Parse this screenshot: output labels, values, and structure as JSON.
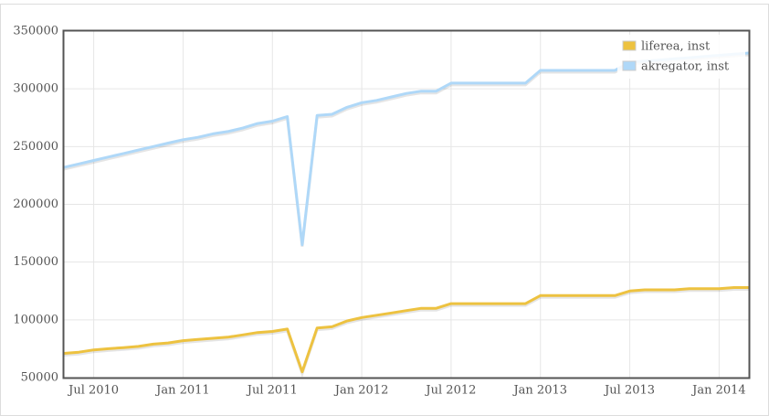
{
  "chart_data": {
    "type": "line",
    "x": [
      "2010-05",
      "2010-06",
      "2010-07",
      "2010-08",
      "2010-09",
      "2010-10",
      "2010-11",
      "2010-12",
      "2011-01",
      "2011-02",
      "2011-03",
      "2011-04",
      "2011-05",
      "2011-06",
      "2011-07",
      "2011-08",
      "2011-09",
      "2011-10",
      "2011-11",
      "2011-12",
      "2012-01",
      "2012-02",
      "2012-03",
      "2012-04",
      "2012-05",
      "2012-06",
      "2012-07",
      "2012-08",
      "2012-09",
      "2012-10",
      "2012-11",
      "2012-12",
      "2013-01",
      "2013-02",
      "2013-03",
      "2013-04",
      "2013-05",
      "2013-06",
      "2013-07",
      "2013-08",
      "2013-09",
      "2013-10",
      "2013-11",
      "2013-12",
      "2014-01",
      "2014-02",
      "2014-03"
    ],
    "series": [
      {
        "name": "liferea, inst",
        "color": "#edc240",
        "values": [
          71000,
          72000,
          74000,
          75000,
          76000,
          77000,
          79000,
          80000,
          82000,
          83000,
          84000,
          85000,
          87000,
          89000,
          90000,
          92000,
          55000,
          93000,
          94000,
          99000,
          102000,
          104000,
          106000,
          108000,
          110000,
          110000,
          114000,
          114000,
          114000,
          114000,
          114000,
          114000,
          121000,
          121000,
          121000,
          121000,
          121000,
          121000,
          125000,
          126000,
          126000,
          126000,
          127000,
          127000,
          127000,
          128000,
          128000
        ]
      },
      {
        "name": "akregator, inst",
        "color": "#afd8f8",
        "values": [
          232000,
          235000,
          238000,
          241000,
          244000,
          247000,
          250000,
          253000,
          256000,
          258000,
          261000,
          263000,
          266000,
          270000,
          272000,
          276000,
          165000,
          277000,
          278000,
          284000,
          288000,
          290000,
          293000,
          296000,
          298000,
          298000,
          305000,
          305000,
          305000,
          305000,
          305000,
          305000,
          316000,
          316000,
          316000,
          316000,
          316000,
          316000,
          323000,
          324000,
          325000,
          326000,
          327000,
          328000,
          329000,
          330000,
          331000
        ]
      }
    ],
    "xlim": [
      "2010-05",
      "2014-03"
    ],
    "xticks": [
      {
        "value": "2010-07",
        "label": "Jul 2010"
      },
      {
        "value": "2011-01",
        "label": "Jan 2011"
      },
      {
        "value": "2011-07",
        "label": "Jul 2011"
      },
      {
        "value": "2012-01",
        "label": "Jan 2012"
      },
      {
        "value": "2012-07",
        "label": "Jul 2012"
      },
      {
        "value": "2013-01",
        "label": "Jan 2013"
      },
      {
        "value": "2013-07",
        "label": "Jul 2013"
      },
      {
        "value": "2014-01",
        "label": "Jan 2014"
      }
    ],
    "ylim": [
      50000,
      350000
    ],
    "yticks": [
      50000,
      100000,
      150000,
      200000,
      250000,
      300000,
      350000
    ],
    "grid": true,
    "legend": "top-right"
  }
}
